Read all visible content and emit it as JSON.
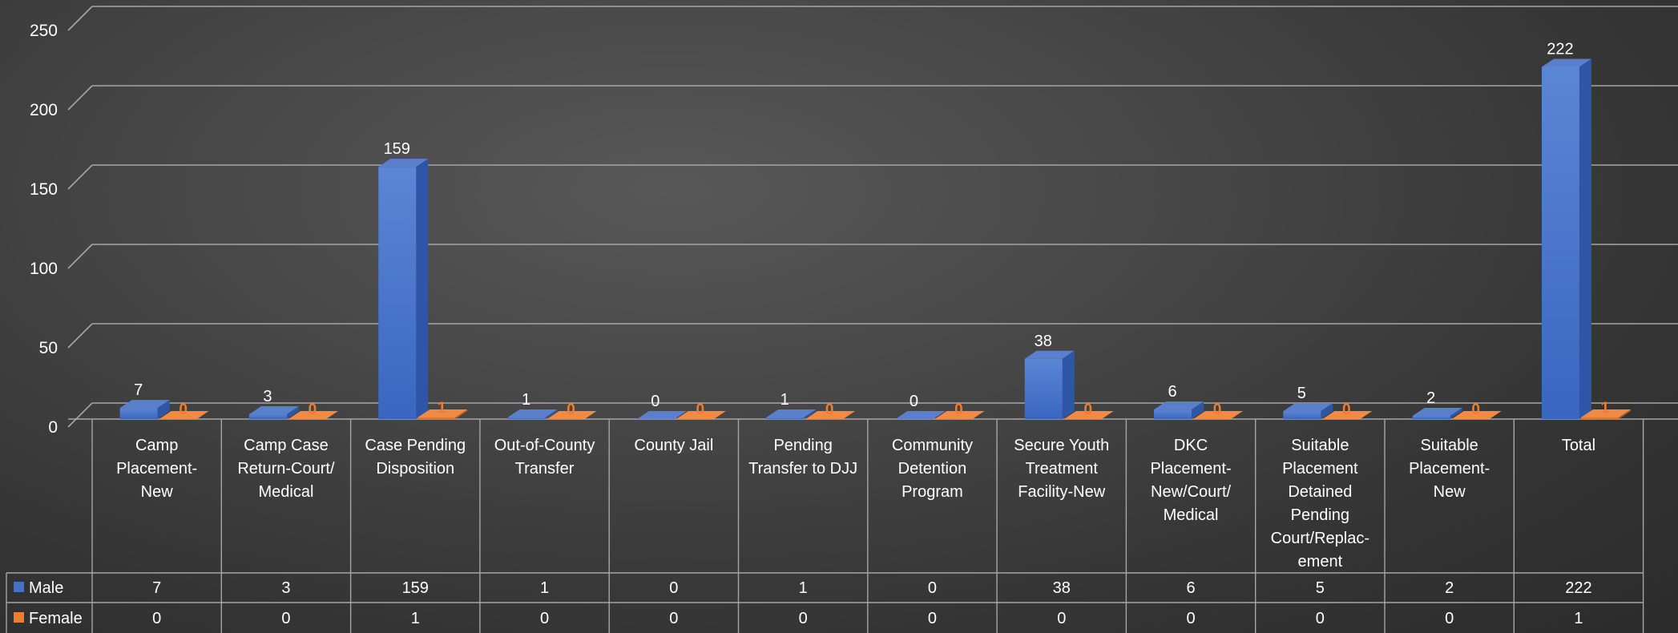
{
  "chart_data": {
    "type": "bar",
    "categories": [
      "Camp Placement-New",
      "Camp Case Return-Court/ Medical",
      "Case Pending Disposition",
      "Out-of-County Transfer",
      "County Jail",
      "Pending Transfer to DJJ",
      "Community Detention Program",
      "Secure Youth Treatment Facility-New",
      "DKC Placement-New/Court/ Medical",
      "Suitable Placement Detained Pending Court/Replac-ement",
      "Suitable Placement-New",
      "Total"
    ],
    "series": [
      {
        "name": "Male",
        "values": [
          7,
          3,
          159,
          1,
          0,
          1,
          0,
          38,
          6,
          5,
          2,
          222
        ]
      },
      {
        "name": "Female",
        "values": [
          0,
          0,
          1,
          0,
          0,
          0,
          0,
          0,
          0,
          0,
          0,
          1
        ]
      }
    ],
    "yticks": [
      "0",
      "50",
      "100",
      "150",
      "200",
      "250"
    ],
    "ylim": [
      0,
      250
    ],
    "grid": true,
    "legend": "data-table",
    "colors": {
      "male": "#4472C4",
      "female": "#ED7D31",
      "text": "#FFFFFF",
      "grid": "#A6A6A6"
    }
  }
}
